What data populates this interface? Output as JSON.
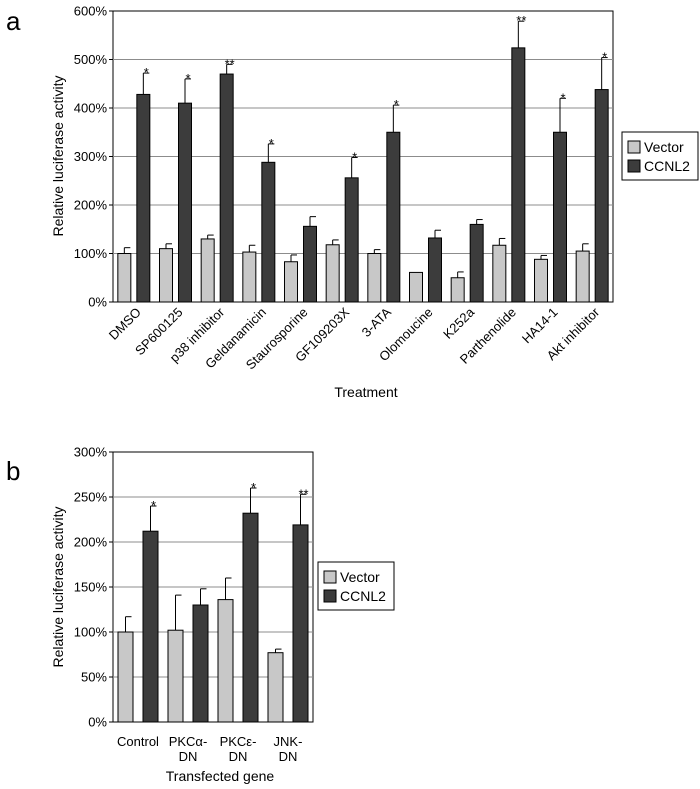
{
  "chart_data": [
    {
      "type": "bar",
      "panel_label": "a",
      "xlabel": "Treatment",
      "ylabel": "Relative luciferase activity",
      "ylim": [
        0,
        600
      ],
      "yticks": [
        0,
        100,
        200,
        300,
        400,
        500,
        600
      ],
      "ytick_labels": [
        "0%",
        "100%",
        "200%",
        "300%",
        "400%",
        "500%",
        "600%"
      ],
      "grid": true,
      "legend_position": "right",
      "categories": [
        "DMSO",
        "SP600125",
        "p38 inhibitor",
        "Geldanamicin",
        "Staurosporine",
        "GF109203X",
        "3-ATA",
        "Olomoucine",
        "K252a",
        "Parthenolide",
        "HA14-1",
        "Akt inhibitor"
      ],
      "series": [
        {
          "name": "Vector",
          "color": "#c8c8c8",
          "values": [
            100,
            110,
            130,
            103,
            83,
            118,
            100,
            61,
            50,
            117,
            88,
            105
          ],
          "errors": [
            12,
            10,
            8,
            14,
            14,
            10,
            8,
            0,
            12,
            14,
            8,
            15
          ]
        },
        {
          "name": "CCNL2",
          "color": "#3c3c3c",
          "values": [
            428,
            410,
            470,
            288,
            156,
            256,
            350,
            132,
            160,
            524,
            350,
            438
          ],
          "errors": [
            44,
            50,
            20,
            38,
            20,
            42,
            56,
            16,
            10,
            55,
            70,
            66
          ]
        }
      ],
      "significance": [
        "*",
        "*",
        "**",
        "*",
        "",
        "*",
        "*",
        "",
        "",
        "**",
        "*",
        "*"
      ]
    },
    {
      "type": "bar",
      "panel_label": "b",
      "xlabel": "Transfected gene",
      "ylabel": "Relative luciferase activity",
      "ylim": [
        0,
        300
      ],
      "yticks": [
        0,
        50,
        100,
        150,
        200,
        250,
        300
      ],
      "ytick_labels": [
        "0%",
        "50%",
        "100%",
        "150%",
        "200%",
        "250%",
        "300%"
      ],
      "grid": true,
      "legend_position": "right",
      "categories": [
        [
          "Control"
        ],
        [
          "PKCα-",
          "DN"
        ],
        [
          "PKCε-",
          "DN"
        ],
        [
          "JNK-",
          "DN"
        ]
      ],
      "series": [
        {
          "name": "Vector",
          "color": "#c8c8c8",
          "values": [
            100,
            102,
            136,
            77
          ],
          "errors": [
            17,
            39,
            24,
            4
          ]
        },
        {
          "name": "CCNL2",
          "color": "#3c3c3c",
          "values": [
            212,
            130,
            232,
            219
          ],
          "errors": [
            28,
            18,
            28,
            34
          ]
        }
      ],
      "significance": [
        "*",
        "",
        "*",
        "**"
      ]
    }
  ]
}
